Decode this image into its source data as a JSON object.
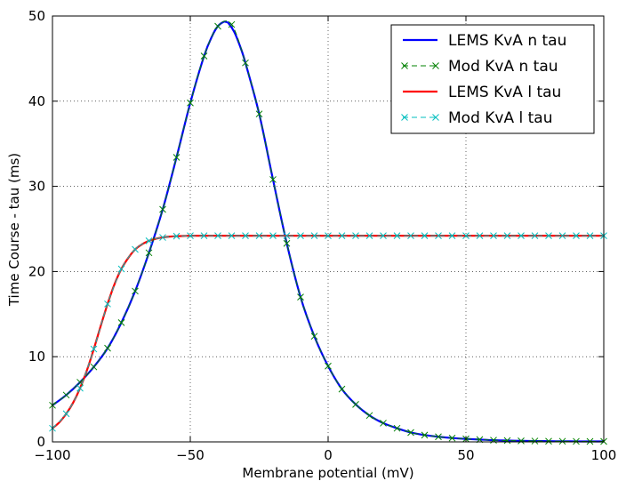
{
  "chart_data": {
    "type": "line",
    "title": "",
    "xlabel": "Membrane potential (mV)",
    "ylabel": "Time Course - tau (ms)",
    "xlim": [
      -100,
      100
    ],
    "ylim": [
      0,
      50
    ],
    "xticks": [
      -100,
      -50,
      0,
      50,
      100
    ],
    "xtick_labels": [
      "−100",
      "−50",
      "0",
      "50",
      "100"
    ],
    "yticks": [
      0,
      10,
      20,
      30,
      40,
      50
    ],
    "ytick_labels": [
      "0",
      "10",
      "20",
      "30",
      "40",
      "50"
    ],
    "grid": true,
    "legend_position": "top-right",
    "series": [
      {
        "name": "LEMS KvA n tau",
        "style": "line",
        "color": "#0000ff",
        "x": [
          -100,
          -95,
          -90,
          -85,
          -80,
          -75,
          -70,
          -65,
          -60,
          -55,
          -50,
          -45,
          -42,
          -40,
          -38,
          -37,
          -36,
          -34,
          -32,
          -30,
          -25,
          -20,
          -15,
          -10,
          -5,
          0,
          5,
          10,
          15,
          20,
          25,
          30,
          35,
          40,
          45,
          50,
          55,
          60,
          65,
          70,
          75,
          80,
          85,
          90,
          95,
          100
        ],
        "y": [
          4.3,
          5.5,
          7.0,
          8.8,
          11.0,
          14.0,
          17.7,
          22.2,
          27.3,
          33.4,
          39.8,
          45.3,
          47.7,
          48.8,
          49.3,
          49.3,
          49.1,
          48.1,
          46.5,
          44.5,
          38.5,
          30.8,
          23.3,
          17.0,
          12.4,
          8.9,
          6.2,
          4.4,
          3.1,
          2.2,
          1.6,
          1.1,
          0.8,
          0.6,
          0.45,
          0.35,
          0.27,
          0.2,
          0.16,
          0.12,
          0.1,
          0.08,
          0.07,
          0.06,
          0.05,
          0.05
        ]
      },
      {
        "name": "Mod KvA n tau",
        "style": "dashed-x",
        "color": "#008000",
        "x": [
          -100,
          -95,
          -90,
          -85,
          -80,
          -75,
          -70,
          -65,
          -60,
          -55,
          -50,
          -45,
          -40,
          -35,
          -30,
          -25,
          -20,
          -15,
          -10,
          -5,
          0,
          5,
          10,
          15,
          20,
          25,
          30,
          35,
          40,
          45,
          50,
          55,
          60,
          65,
          70,
          75,
          80,
          85,
          90,
          95,
          100
        ],
        "y": [
          4.3,
          5.5,
          7.0,
          8.8,
          11.0,
          14.0,
          17.7,
          22.2,
          27.3,
          33.4,
          39.8,
          45.3,
          48.8,
          49.0,
          44.5,
          38.5,
          30.8,
          23.3,
          17.0,
          12.4,
          8.9,
          6.2,
          4.4,
          3.1,
          2.2,
          1.6,
          1.1,
          0.8,
          0.6,
          0.45,
          0.35,
          0.27,
          0.2,
          0.16,
          0.12,
          0.1,
          0.08,
          0.07,
          0.06,
          0.05,
          0.05
        ]
      },
      {
        "name": "LEMS KvA l tau",
        "style": "line",
        "color": "#ff0000",
        "x": [
          -100,
          -97.5,
          -95,
          -92.5,
          -90,
          -87.5,
          -85,
          -82.5,
          -80,
          -77.5,
          -75,
          -72.5,
          -70,
          -67.5,
          -65,
          -62.5,
          -60,
          -57.5,
          -55,
          -52.5,
          -50,
          -45,
          -40,
          -35,
          -30,
          -20,
          -10,
          0,
          20,
          40,
          60,
          80,
          100
        ],
        "y": [
          1.6,
          2.3,
          3.3,
          4.6,
          6.3,
          8.4,
          10.9,
          13.6,
          16.2,
          18.5,
          20.3,
          21.6,
          22.6,
          23.2,
          23.6,
          23.85,
          24.0,
          24.1,
          24.15,
          24.18,
          24.2,
          24.2,
          24.2,
          24.2,
          24.2,
          24.2,
          24.2,
          24.2,
          24.2,
          24.2,
          24.2,
          24.2,
          24.2
        ]
      },
      {
        "name": "Mod KvA l tau",
        "style": "dashed-x",
        "color": "#00bfbf",
        "x": [
          -100,
          -95,
          -90,
          -85,
          -80,
          -75,
          -70,
          -65,
          -60,
          -55,
          -50,
          -45,
          -40,
          -35,
          -30,
          -25,
          -20,
          -15,
          -10,
          -5,
          0,
          5,
          10,
          15,
          20,
          25,
          30,
          35,
          40,
          45,
          50,
          55,
          60,
          65,
          70,
          75,
          80,
          85,
          90,
          95,
          100
        ],
        "y": [
          1.6,
          3.3,
          6.3,
          10.9,
          16.2,
          20.3,
          22.6,
          23.6,
          24.0,
          24.15,
          24.2,
          24.2,
          24.2,
          24.2,
          24.2,
          24.2,
          24.2,
          24.2,
          24.2,
          24.2,
          24.2,
          24.2,
          24.2,
          24.2,
          24.2,
          24.2,
          24.2,
          24.2,
          24.2,
          24.2,
          24.2,
          24.2,
          24.2,
          24.2,
          24.2,
          24.2,
          24.2,
          24.2,
          24.2,
          24.2,
          24.2
        ]
      }
    ]
  }
}
